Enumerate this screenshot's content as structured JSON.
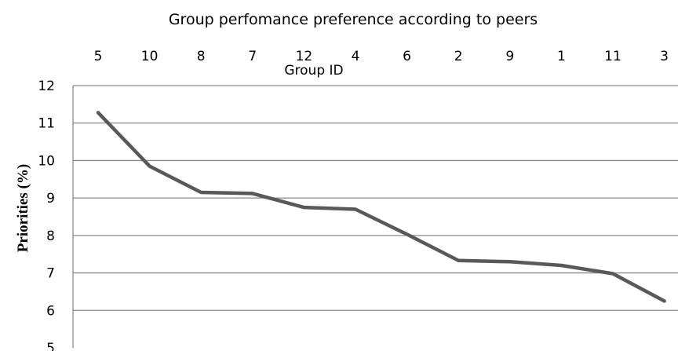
{
  "chart_data": {
    "type": "line",
    "title": "Group perfomance preference according to peers",
    "xlabel": "Group ID",
    "ylabel": "Priorities (%)",
    "categories": [
      "5",
      "10",
      "8",
      "7",
      "12",
      "4",
      "6",
      "2",
      "9",
      "1",
      "11",
      "3"
    ],
    "values": [
      11.28,
      9.85,
      9.15,
      9.12,
      8.75,
      8.7,
      8.03,
      7.33,
      7.3,
      7.2,
      6.98,
      6.25
    ],
    "ylim": [
      5,
      12
    ],
    "yticks": [
      "5",
      "6",
      "7",
      "8",
      "9",
      "10",
      "11",
      "12"
    ],
    "x_axis_position": "top",
    "grid": true,
    "line_color": "#595959"
  }
}
